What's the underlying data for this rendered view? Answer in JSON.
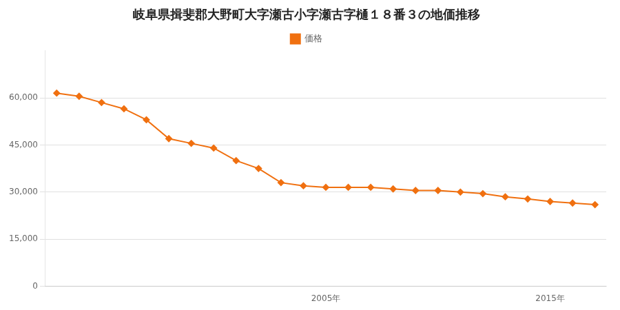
{
  "chart_data": {
    "type": "line",
    "title": "岐阜県揖斐郡大野町大字瀬古小字瀬古字樋１８番３の地価推移",
    "x": [
      1993,
      1994,
      1995,
      1996,
      1997,
      1998,
      1999,
      2000,
      2001,
      2002,
      2003,
      2004,
      2005,
      2006,
      2007,
      2008,
      2009,
      2010,
      2011,
      2012,
      2013,
      2014,
      2015,
      2016,
      2017
    ],
    "series": [
      {
        "name": "価格",
        "color": "#f07010",
        "marker": "diamond",
        "values": [
          61500,
          60500,
          58500,
          56500,
          53000,
          47000,
          45500,
          44000,
          40000,
          37500,
          33000,
          32000,
          31500,
          31500,
          31500,
          31000,
          30500,
          30500,
          30000,
          29500,
          28500,
          27800,
          27000,
          26500,
          26000
        ]
      }
    ],
    "xlim": [
      1992.5,
      2017.5
    ],
    "xticks": [
      {
        "value": 2005,
        "label": "2005年"
      },
      {
        "value": 2015,
        "label": "2015年"
      }
    ],
    "ylim": [
      0,
      75000
    ],
    "yticks": [
      0,
      {
        "value": 15000,
        "label": "15,000"
      },
      {
        "value": 30000,
        "label": "30,000"
      },
      {
        "value": 45000,
        "label": "45,000"
      },
      {
        "value": 60000,
        "label": "60,000"
      }
    ],
    "grid": "y",
    "legend": "top"
  }
}
